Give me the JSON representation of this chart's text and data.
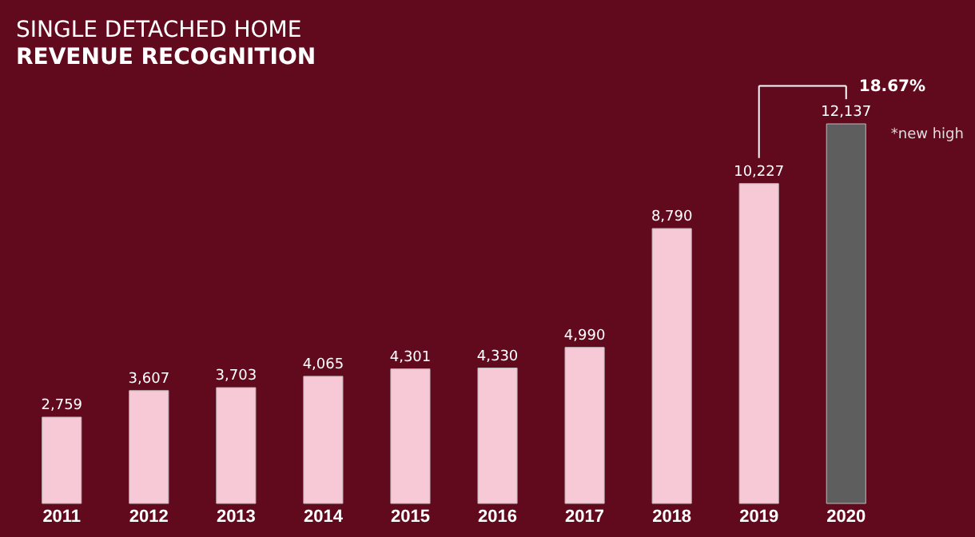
{
  "chart_data": {
    "type": "bar",
    "title": "SINGLE DETACHED HOME",
    "subtitle": "REVENUE RECOGNITION",
    "categories": [
      "2011",
      "2012",
      "2013",
      "2014",
      "2015",
      "2016",
      "2017",
      "2018",
      "2019",
      "2020"
    ],
    "values": [
      2759,
      3607,
      3703,
      4065,
      4301,
      4330,
      4990,
      8790,
      10227,
      12137
    ],
    "colors": [
      "#f7c9d6",
      "#f7c9d6",
      "#f7c9d6",
      "#f7c9d6",
      "#f7c9d6",
      "#f7c9d6",
      "#f7c9d6",
      "#f7c9d6",
      "#f7c9d6",
      "#5e5e5e"
    ],
    "value_labels": [
      "2,759",
      "3,607",
      "3,703",
      "4,065",
      "4,301",
      "4,330",
      "4,990",
      "8,790",
      "10,227",
      "12,137"
    ],
    "annotations": [
      "18.67%",
      "*new high"
    ],
    "grid": false
  }
}
